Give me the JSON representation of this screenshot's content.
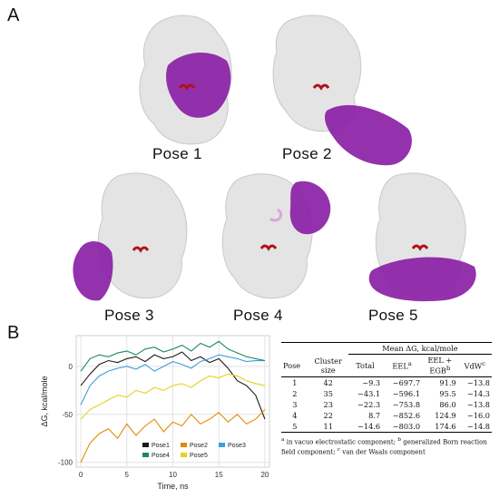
{
  "panel_a_letter": "A",
  "panel_b_letter": "B",
  "poses": [
    {
      "label": "Pose 1"
    },
    {
      "label": "Pose 2"
    },
    {
      "label": "Pose 3"
    },
    {
      "label": "Pose 4"
    },
    {
      "label": "Pose 5"
    }
  ],
  "colors": {
    "protein": "#e4e4e4",
    "ligand": "#8b1fa6",
    "site": "#b0121a"
  },
  "chart_data": {
    "type": "line",
    "title": "",
    "xlabel": "Time, ns",
    "ylabel": "ΔG, kcal/mole",
    "xlim": [
      -0.5,
      20.5
    ],
    "ylim": [
      -105,
      32
    ],
    "x_ticks": [
      "0",
      "5",
      "10",
      "15",
      "20"
    ],
    "y_ticks": [
      "0",
      "-50",
      "-100"
    ],
    "grid": true,
    "legend_position": "bottom-right",
    "series": [
      {
        "name": "Pose1",
        "color": "#1a1a1a",
        "x": [
          0,
          1,
          2,
          3,
          4,
          5,
          6,
          7,
          8,
          9,
          10,
          11,
          12,
          13,
          14,
          15,
          16,
          17,
          18,
          19,
          20
        ],
        "y": [
          -20,
          -8,
          2,
          6,
          4,
          8,
          10,
          5,
          12,
          8,
          10,
          15,
          6,
          10,
          4,
          8,
          -2,
          -15,
          -20,
          -30,
          -55
        ]
      },
      {
        "name": "Pose2",
        "color": "#e08a00",
        "x": [
          0,
          1,
          2,
          3,
          4,
          5,
          6,
          7,
          8,
          9,
          10,
          11,
          12,
          13,
          14,
          15,
          16,
          17,
          18,
          19,
          20
        ],
        "y": [
          -100,
          -80,
          -70,
          -65,
          -75,
          -60,
          -72,
          -62,
          -55,
          -68,
          -58,
          -62,
          -50,
          -60,
          -55,
          -48,
          -58,
          -50,
          -60,
          -55,
          -45
        ]
      },
      {
        "name": "Pose3",
        "color": "#3aa0d8",
        "x": [
          0,
          1,
          2,
          3,
          4,
          5,
          6,
          7,
          8,
          9,
          10,
          11,
          12,
          13,
          14,
          15,
          16,
          17,
          18,
          19,
          20
        ],
        "y": [
          -40,
          -20,
          -10,
          -5,
          -2,
          0,
          -3,
          2,
          -5,
          0,
          5,
          2,
          -2,
          5,
          8,
          12,
          10,
          8,
          5,
          6,
          6
        ]
      },
      {
        "name": "Pose4",
        "color": "#1a8a5a",
        "x": [
          0,
          1,
          2,
          3,
          4,
          5,
          6,
          7,
          8,
          9,
          10,
          11,
          12,
          13,
          14,
          15,
          16,
          17,
          18,
          19,
          20
        ],
        "y": [
          -5,
          8,
          12,
          10,
          14,
          16,
          12,
          18,
          20,
          15,
          18,
          22,
          16,
          24,
          20,
          26,
          18,
          14,
          10,
          8,
          6
        ]
      },
      {
        "name": "Pose5",
        "color": "#e6d21a",
        "x": [
          0,
          1,
          2,
          3,
          4,
          5,
          6,
          7,
          8,
          9,
          10,
          11,
          12,
          13,
          14,
          15,
          16,
          17,
          18,
          19,
          20
        ],
        "y": [
          -55,
          -45,
          -40,
          -35,
          -30,
          -32,
          -25,
          -28,
          -22,
          -25,
          -20,
          -18,
          -22,
          -15,
          -10,
          -12,
          -8,
          -10,
          -15,
          -18,
          -20
        ]
      }
    ]
  },
  "table": {
    "header_group": "Mean ΔG, kcal/mole",
    "headers": {
      "pose": "Pose",
      "cluster_1": "Cluster",
      "cluster_2": "size",
      "total": "Total",
      "eel": "EEL",
      "eel_sup": "a",
      "eelegb_1": "EEL +",
      "eelegb_2": "EGB",
      "eelegb_sup": "b",
      "vdw": "VdW",
      "vdw_sup": "c"
    },
    "rows": [
      {
        "pose": "1",
        "cluster": "42",
        "total": "−9.3",
        "eel": "−697.7",
        "eelegb": "91.9",
        "vdw": "−13.8"
      },
      {
        "pose": "2",
        "cluster": "35",
        "total": "−43.1",
        "eel": "−596.1",
        "eelegb": "95.5",
        "vdw": "−14.3"
      },
      {
        "pose": "3",
        "cluster": "23",
        "total": "−22.3",
        "eel": "−753.8",
        "eelegb": "86.0",
        "vdw": "−13.8"
      },
      {
        "pose": "4",
        "cluster": "22",
        "total": "8.7",
        "eel": "−852.6",
        "eelegb": "124.9",
        "vdw": "−16.0"
      },
      {
        "pose": "5",
        "cluster": "11",
        "total": "−14.6",
        "eel": "−803.0",
        "eelegb": "174.6",
        "vdw": "−14.8"
      }
    ],
    "footnote_a_sup": "a",
    "footnote_a": " in vacuo electrostatic component; ",
    "footnote_b_sup": "b",
    "footnote_b": " generalized Born reaction field component; ",
    "footnote_c_sup": "c",
    "footnote_c": " van der Waals component"
  }
}
